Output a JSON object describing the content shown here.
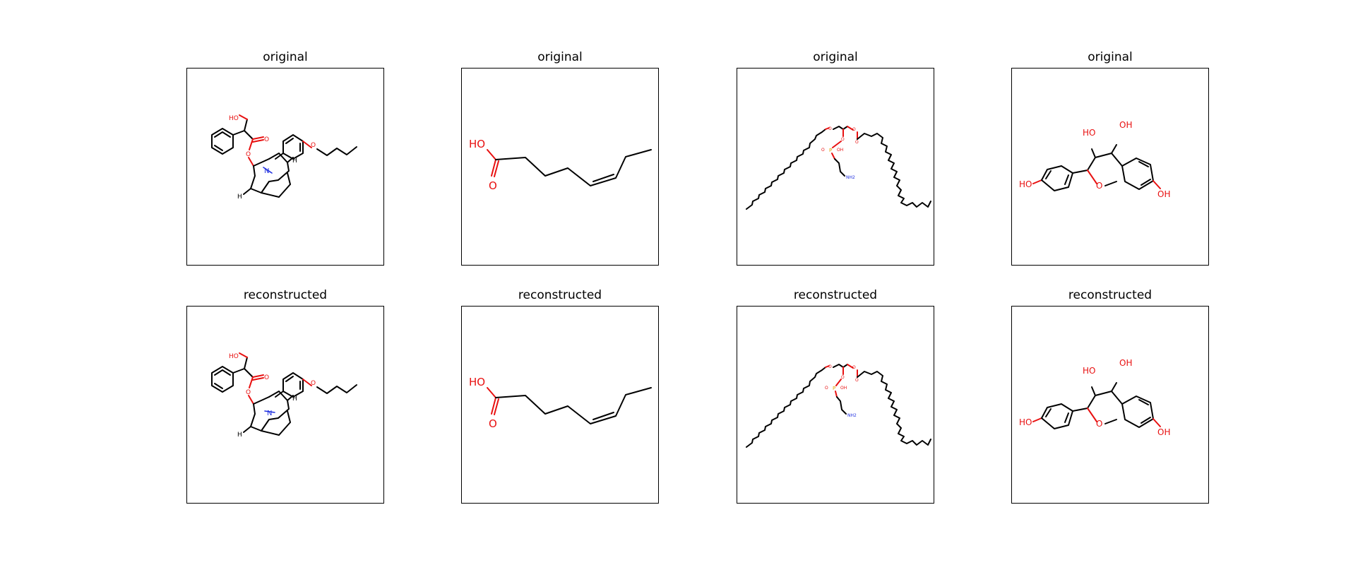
{
  "figure": {
    "rows": [
      {
        "title": "original"
      },
      {
        "title": "reconstructed"
      }
    ]
  },
  "molecules": [
    {
      "atom_labels": {
        "hydroxyl": "HO",
        "ether_o": "O",
        "ester_o": "O",
        "carbonyl_o": "O",
        "nitrogen": "N",
        "h1": "H",
        "h2": "H"
      }
    },
    {
      "atom_labels": {
        "hydroxyl": "HO",
        "carbonyl_o": "O"
      }
    },
    {
      "atom_labels": {
        "o1": "O",
        "o2": "O",
        "o3": "O",
        "o4": "O",
        "phosphorus": "P",
        "po": "O",
        "poh": "OH",
        "amine": "NH2"
      }
    },
    {
      "atom_labels": {
        "ho_left": "HO",
        "ho_top1": "HO",
        "oh_top2": "OH",
        "ring_o": "O",
        "oh_right": "OH"
      }
    }
  ],
  "colors": {
    "frame": "#000000",
    "oxygen": "#e81010",
    "nitrogen": "#2030e0",
    "phosphorus": "#e0a000",
    "carbon_bond": "#000000"
  }
}
